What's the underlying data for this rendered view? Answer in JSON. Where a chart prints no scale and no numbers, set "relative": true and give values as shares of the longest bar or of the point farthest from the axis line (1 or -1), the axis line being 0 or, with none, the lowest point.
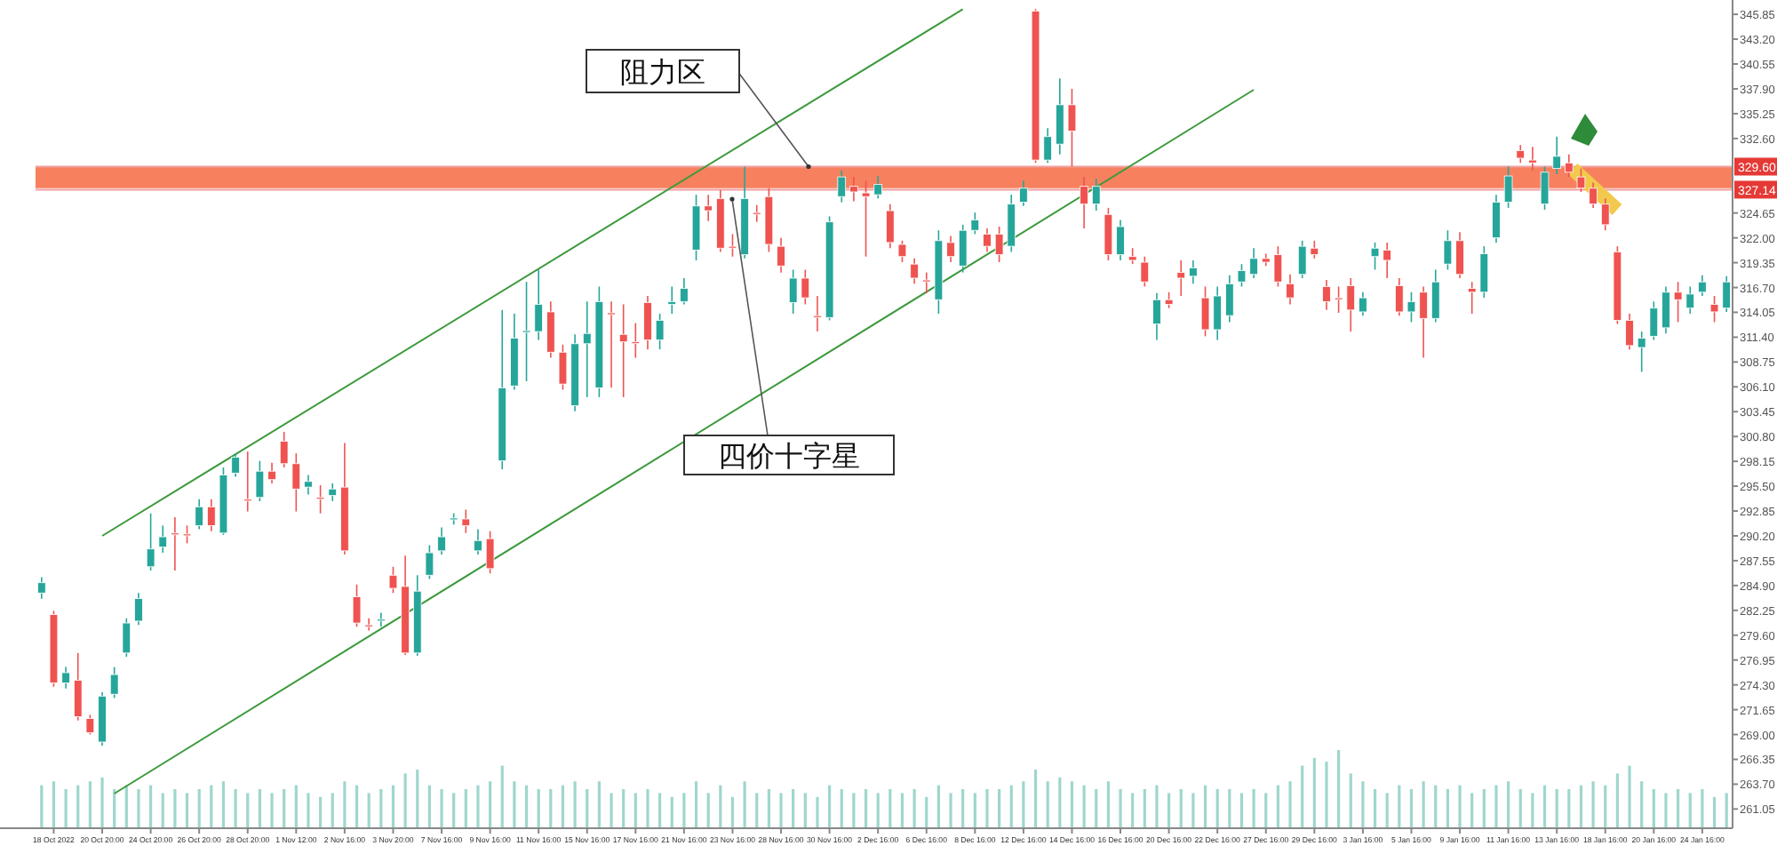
{
  "chart_data": [
    {
      "type": "candlestick",
      "categories": [
        null,
        "18 Oct 2022",
        null,
        null,
        null,
        "20 Oct 20:00",
        null,
        null,
        null,
        "24 Oct 20:00",
        null,
        null,
        null,
        "26 Oct 20:00",
        null,
        null,
        null,
        "28 Oct 20:00",
        null,
        null,
        null,
        "1 Nov 12:00",
        null,
        null,
        null,
        "2 Nov 16:00",
        null,
        null,
        null,
        "3 Nov 20:00",
        null,
        null,
        null,
        "7 Nov 16:00",
        null,
        null,
        null,
        "9 Nov 16:00",
        null,
        null,
        null,
        "11 Nov 16:00",
        null,
        null,
        null,
        "15 Nov 16:00",
        null,
        null,
        null,
        "17 Nov 16:00",
        null,
        null,
        null,
        "21 Nov 16:00",
        null,
        null,
        null,
        "23 Nov 16:00",
        null,
        null,
        null,
        "28 Nov 16:00",
        null,
        null,
        null,
        "30 Nov 16:00",
        null,
        null,
        null,
        "2 Dec 16:00",
        null,
        null,
        null,
        "6 Dec 16:00",
        null,
        null,
        null,
        "8 Dec 16:00",
        null,
        null,
        null,
        "12 Dec 16:00",
        null,
        null,
        null,
        "14 Dec 16:00",
        null,
        null,
        null,
        "16 Dec 16:00",
        null,
        null,
        null,
        "20 Dec 16:00",
        null,
        null,
        null,
        "22 Dec 16:00",
        null,
        null,
        null,
        "27 Dec 16:00",
        null,
        null,
        null,
        "29 Dec 16:00",
        null,
        null,
        null,
        "3 Jan 16:00",
        null,
        null,
        null,
        "5 Jan 16:00",
        null,
        null,
        null,
        "9 Jan 16:00",
        null,
        null,
        null,
        "11 Jan 16:00",
        null,
        null,
        null,
        "13 Jan 16:00",
        null,
        null,
        null,
        "18 Jan 16:00",
        null,
        null,
        null,
        "20 Jan 16:00",
        null,
        null,
        null,
        "24 Jan 16:00",
        null,
        null
      ],
      "ohlc": [
        [
          284.1,
          285.8,
          283.5,
          285.2
        ],
        [
          281.8,
          282.2,
          274.1,
          274.5
        ],
        [
          274.5,
          276.2,
          273.9,
          275.6
        ],
        [
          274.8,
          277.7,
          270.5,
          270.9
        ],
        [
          270.7,
          271.1,
          269.0,
          269.2
        ],
        [
          268.2,
          273.5,
          267.8,
          273.1
        ],
        [
          273.3,
          276.2,
          272.9,
          275.4
        ],
        [
          277.7,
          281.4,
          277.3,
          280.9
        ],
        [
          281.1,
          284.1,
          280.7,
          283.5
        ],
        [
          286.9,
          292.6,
          286.5,
          288.8
        ],
        [
          289.0,
          291.3,
          288.4,
          290.1
        ],
        [
          290.5,
          292.2,
          286.5,
          290.4
        ],
        [
          290.4,
          291.3,
          289.4,
          290.3
        ],
        [
          291.3,
          294.1,
          290.9,
          293.3
        ],
        [
          293.3,
          294.1,
          290.7,
          291.3
        ],
        [
          290.5,
          297.5,
          290.3,
          296.7
        ],
        [
          296.9,
          299.0,
          296.5,
          298.6
        ],
        [
          294.1,
          299.2,
          292.8,
          294.0
        ],
        [
          294.3,
          298.2,
          293.9,
          297.1
        ],
        [
          297.1,
          298.0,
          295.8,
          296.2
        ],
        [
          300.3,
          301.3,
          297.5,
          297.9
        ],
        [
          297.9,
          299.0,
          292.8,
          295.2
        ],
        [
          295.4,
          296.7,
          294.6,
          296.0
        ],
        [
          294.3,
          295.6,
          292.6,
          294.2
        ],
        [
          294.5,
          295.8,
          293.9,
          295.2
        ],
        [
          295.4,
          300.1,
          288.2,
          288.6
        ],
        [
          283.7,
          285.0,
          280.5,
          280.9
        ],
        [
          280.7,
          281.4,
          280.1,
          280.6
        ],
        [
          281.2,
          282.0,
          280.5,
          281.3
        ],
        [
          286.0,
          286.9,
          284.1,
          284.6
        ],
        [
          284.8,
          288.1,
          277.5,
          277.7
        ],
        [
          277.7,
          286.0,
          277.4,
          284.3
        ],
        [
          286.0,
          289.2,
          285.6,
          288.4
        ],
        [
          288.6,
          291.1,
          288.2,
          290.1
        ],
        [
          292.0,
          292.6,
          291.4,
          292.1
        ],
        [
          292.0,
          293.0,
          290.5,
          291.3
        ],
        [
          288.6,
          290.9,
          288.2,
          289.7
        ],
        [
          289.9,
          290.7,
          286.2,
          286.7
        ],
        [
          298.2,
          314.3,
          297.3,
          306.0
        ],
        [
          306.2,
          313.9,
          305.8,
          311.3
        ],
        [
          312.0,
          317.3,
          306.7,
          312.1
        ],
        [
          312.0,
          318.6,
          311.1,
          314.9
        ],
        [
          314.1,
          315.2,
          309.2,
          309.8
        ],
        [
          309.8,
          310.6,
          305.8,
          306.4
        ],
        [
          304.1,
          311.7,
          303.5,
          310.7
        ],
        [
          310.7,
          315.2,
          305.0,
          311.8
        ],
        [
          306.0,
          316.8,
          305.0,
          315.2
        ],
        [
          314.0,
          315.2,
          306.0,
          313.9
        ],
        [
          311.7,
          314.9,
          305.0,
          310.9
        ],
        [
          310.9,
          312.9,
          309.2,
          310.8
        ],
        [
          315.1,
          315.8,
          310.1,
          311.1
        ],
        [
          311.1,
          313.9,
          310.1,
          313.2
        ],
        [
          314.9,
          316.8,
          313.9,
          315.2
        ],
        [
          315.2,
          317.7,
          314.9,
          316.6
        ],
        [
          320.7,
          326.6,
          319.6,
          325.4
        ],
        [
          325.4,
          326.6,
          323.8,
          324.9
        ],
        [
          326.2,
          327.1,
          320.5,
          320.9
        ],
        [
          321.1,
          322.4,
          320.0,
          321.0
        ],
        [
          320.2,
          329.6,
          319.8,
          326.2
        ],
        [
          324.7,
          325.5,
          323.7,
          324.6
        ],
        [
          326.4,
          327.3,
          320.5,
          321.3
        ],
        [
          321.1,
          322.0,
          318.3,
          319.0
        ],
        [
          315.1,
          318.6,
          313.9,
          317.7
        ],
        [
          317.7,
          318.6,
          314.9,
          315.6
        ],
        [
          313.7,
          315.8,
          312.0,
          313.6
        ],
        [
          313.5,
          324.3,
          313.2,
          323.7
        ],
        [
          326.4,
          329.2,
          325.8,
          328.5
        ],
        [
          327.5,
          328.5,
          325.9,
          326.9
        ],
        [
          326.8,
          328.1,
          320.0,
          326.4
        ],
        [
          326.6,
          328.6,
          326.2,
          327.7
        ],
        [
          324.9,
          325.6,
          320.9,
          321.5
        ],
        [
          321.3,
          321.7,
          319.4,
          320.0
        ],
        [
          319.2,
          319.8,
          317.1,
          317.7
        ],
        [
          317.5,
          318.3,
          316.1,
          317.4
        ],
        [
          315.4,
          322.8,
          313.9,
          321.7
        ],
        [
          321.5,
          322.2,
          319.4,
          320.0
        ],
        [
          319.0,
          323.4,
          318.3,
          322.8
        ],
        [
          322.8,
          324.7,
          322.4,
          323.9
        ],
        [
          322.4,
          323.0,
          320.5,
          321.1
        ],
        [
          322.4,
          323.2,
          319.4,
          320.2
        ],
        [
          321.1,
          326.6,
          320.5,
          325.6
        ],
        [
          325.8,
          328.1,
          325.4,
          327.3
        ],
        [
          346.2,
          346.4,
          330.0,
          330.3
        ],
        [
          330.3,
          333.7,
          330.0,
          332.8
        ],
        [
          332.0,
          339.0,
          330.9,
          336.2
        ],
        [
          336.2,
          337.9,
          329.6,
          333.4
        ],
        [
          327.5,
          328.5,
          323.0,
          325.6
        ],
        [
          325.6,
          328.3,
          324.9,
          327.5
        ],
        [
          324.5,
          325.2,
          319.6,
          320.2
        ],
        [
          320.2,
          323.9,
          319.6,
          323.2
        ],
        [
          320.0,
          320.9,
          319.2,
          319.6
        ],
        [
          319.4,
          320.0,
          316.8,
          317.3
        ],
        [
          312.8,
          316.1,
          311.1,
          315.4
        ],
        [
          315.4,
          316.2,
          314.5,
          314.9
        ],
        [
          318.3,
          319.6,
          315.8,
          317.7
        ],
        [
          317.9,
          319.6,
          317.1,
          318.8
        ],
        [
          315.6,
          316.8,
          311.5,
          312.2
        ],
        [
          312.2,
          316.8,
          311.1,
          315.8
        ],
        [
          313.7,
          318.0,
          313.0,
          317.1
        ],
        [
          317.3,
          319.2,
          316.8,
          318.5
        ],
        [
          318.1,
          320.9,
          317.7,
          319.8
        ],
        [
          319.8,
          320.3,
          319.0,
          319.4
        ],
        [
          320.2,
          321.1,
          316.8,
          317.3
        ],
        [
          317.1,
          318.1,
          314.9,
          315.6
        ],
        [
          318.1,
          321.7,
          317.7,
          321.1
        ],
        [
          320.9,
          321.7,
          319.8,
          320.2
        ],
        [
          316.8,
          317.5,
          314.3,
          315.2
        ],
        [
          315.6,
          316.8,
          314.0,
          315.5
        ],
        [
          316.9,
          317.7,
          312.0,
          314.3
        ],
        [
          314.1,
          316.2,
          313.7,
          315.6
        ],
        [
          320.0,
          321.5,
          318.6,
          320.9
        ],
        [
          320.7,
          321.5,
          317.7,
          319.6
        ],
        [
          316.9,
          317.7,
          313.7,
          314.1
        ],
        [
          314.1,
          316.2,
          313.0,
          315.2
        ],
        [
          316.2,
          316.8,
          309.2,
          313.4
        ],
        [
          313.4,
          318.6,
          313.0,
          317.3
        ],
        [
          319.2,
          322.8,
          318.6,
          321.7
        ],
        [
          321.7,
          322.6,
          317.7,
          318.1
        ],
        [
          316.6,
          317.3,
          313.9,
          316.2
        ],
        [
          316.2,
          321.1,
          315.6,
          320.3
        ],
        [
          322.0,
          326.6,
          321.5,
          325.8
        ],
        [
          325.8,
          329.6,
          325.2,
          328.6
        ],
        [
          331.3,
          331.9,
          330.0,
          330.5
        ],
        [
          330.3,
          331.7,
          329.2,
          330.0
        ],
        [
          325.6,
          329.6,
          325.0,
          329.0
        ],
        [
          329.4,
          332.8,
          328.8,
          330.7
        ],
        [
          330.0,
          330.9,
          328.5,
          329.0
        ],
        [
          328.5,
          329.4,
          326.9,
          327.3
        ],
        [
          327.3,
          327.9,
          325.2,
          325.6
        ],
        [
          325.6,
          326.2,
          322.8,
          323.4
        ],
        [
          320.5,
          321.1,
          312.8,
          313.2
        ],
        [
          313.2,
          313.9,
          310.1,
          310.5
        ],
        [
          310.3,
          312.0,
          307.7,
          311.3
        ],
        [
          311.5,
          315.2,
          311.1,
          314.5
        ],
        [
          312.4,
          316.8,
          311.8,
          316.2
        ],
        [
          316.2,
          317.3,
          313.0,
          315.4
        ],
        [
          314.5,
          316.8,
          313.9,
          316.0
        ],
        [
          316.2,
          318.0,
          315.8,
          317.3
        ],
        [
          314.9,
          315.8,
          313.0,
          314.1
        ],
        [
          314.5,
          317.9,
          314.1,
          317.3
        ]
      ],
      "colors": [
        "#26a69a",
        "#ef5350",
        "#26a69a",
        "#ef5350",
        "#ef5350",
        "#26a69a",
        "#26a69a",
        "#26a69a",
        "#26a69a",
        "#26a69a",
        "#26a69a",
        "#ef5350",
        "#ef5350",
        "#26a69a",
        "#ef5350",
        "#26a69a",
        "#26a69a",
        "#ef5350",
        "#26a69a",
        "#ef5350",
        "#ef5350",
        "#ef5350",
        "#26a69a",
        "#ef5350",
        "#26a69a",
        "#ef5350",
        "#ef5350",
        "#ef5350",
        "#26a69a",
        "#ef5350",
        "#ef5350",
        "#26a69a",
        "#26a69a",
        "#26a69a",
        "#26a69a",
        "#ef5350",
        "#26a69a",
        "#ef5350",
        "#26a69a",
        "#26a69a",
        "#26a69a",
        "#26a69a",
        "#ef5350",
        "#ef5350",
        "#26a69a",
        "#26a69a",
        "#26a69a",
        "#ef5350",
        "#ef5350",
        "#ef5350",
        "#ef5350",
        "#26a69a",
        "#26a69a",
        "#26a69a",
        "#26a69a",
        "#ef5350",
        "#ef5350",
        "#ef5350",
        "#26a69a",
        "#ef5350",
        "#ef5350",
        "#ef5350",
        "#26a69a",
        "#ef5350",
        "#ef5350",
        "#26a69a",
        "#26a69a",
        "#ef5350",
        "#ef5350",
        "#26a69a",
        "#ef5350",
        "#ef5350",
        "#ef5350",
        "#ef5350",
        "#26a69a",
        "#ef5350",
        "#26a69a",
        "#26a69a",
        "#ef5350",
        "#ef5350",
        "#26a69a",
        "#26a69a",
        "#ef5350",
        "#26a69a",
        "#26a69a",
        "#ef5350",
        "#ef5350",
        "#26a69a",
        "#ef5350",
        "#26a69a",
        "#ef5350",
        "#ef5350",
        "#26a69a",
        "#ef5350",
        "#ef5350",
        "#26a69a",
        "#ef5350",
        "#26a69a",
        "#26a69a",
        "#26a69a",
        "#26a69a",
        "#ef5350",
        "#ef5350",
        "#ef5350",
        "#26a69a",
        "#ef5350",
        "#ef5350",
        "#ef5350",
        "#ef5350",
        "#26a69a",
        "#26a69a",
        "#ef5350",
        "#ef5350",
        "#26a69a",
        "#ef5350",
        "#26a69a",
        "#26a69a",
        "#ef5350",
        "#ef5350",
        "#26a69a",
        "#26a69a",
        "#26a69a",
        "#ef5350",
        "#ef5350",
        "#26a69a",
        "#26a69a",
        "#ef5350",
        "#ef5350",
        "#ef5350",
        "#ef5350",
        "#ef5350",
        "#ef5350",
        "#26a69a",
        "#26a69a",
        "#26a69a",
        "#ef5350",
        "#26a69a",
        "#26a69a",
        "#ef5350",
        "#26a69a"
      ],
      "series": [
        {
          "type": "line",
          "color": "#3c9a3c",
          "values": [
            null,
            null,
            null,
            null,
            null,
            290.2,
            null,
            null,
            null,
            null,
            null,
            null,
            null,
            null,
            null,
            null,
            null,
            null,
            null,
            null,
            null,
            null,
            null,
            null,
            null,
            null,
            null,
            null,
            null,
            null,
            null,
            null,
            null,
            null,
            null,
            null,
            null,
            null,
            null,
            null,
            null,
            null,
            null,
            null,
            null,
            null,
            null,
            null,
            null,
            null,
            null,
            null,
            null,
            null,
            null,
            null,
            null,
            null,
            null,
            null,
            null,
            null,
            null,
            null,
            null,
            null,
            null,
            null,
            null,
            null,
            null,
            null,
            null,
            null,
            null,
            null,
            346.4,
            null,
            null,
            null,
            null,
            null,
            null,
            null,
            null,
            null,
            null,
            null,
            null,
            null,
            null,
            null,
            null,
            null,
            null,
            null,
            null,
            null,
            null,
            null,
            null,
            null,
            null,
            null,
            null,
            null,
            null,
            null,
            null,
            null,
            null,
            null,
            null,
            null,
            null,
            null,
            null,
            null,
            null,
            null,
            null,
            null,
            null,
            null,
            null,
            null,
            null,
            null,
            null,
            null,
            null,
            null,
            null,
            null,
            null,
            null,
            null,
            null,
            null,
            null
          ]
        },
        {
          "type": "line",
          "color": "#3c9a3c",
          "values": [
            null,
            null,
            null,
            null,
            null,
            null,
            262.7,
            null,
            null,
            null,
            null,
            null,
            null,
            null,
            null,
            null,
            null,
            null,
            null,
            null,
            null,
            null,
            null,
            null,
            null,
            null,
            null,
            null,
            null,
            null,
            null,
            null,
            null,
            null,
            null,
            null,
            null,
            null,
            null,
            null,
            null,
            null,
            null,
            null,
            null,
            null,
            null,
            null,
            null,
            null,
            null,
            null,
            null,
            null,
            null,
            null,
            null,
            null,
            null,
            null,
            null,
            null,
            null,
            null,
            null,
            null,
            null,
            null,
            null,
            null,
            null,
            null,
            null,
            null,
            null,
            null,
            null,
            null,
            null,
            null,
            null,
            null,
            null,
            null,
            null,
            null,
            null,
            null,
            null,
            null,
            null,
            null,
            null,
            null,
            null,
            null,
            null,
            null,
            null,
            null,
            337.8,
            null,
            null,
            null,
            null,
            null,
            null,
            null,
            null,
            null,
            null,
            null,
            null,
            null,
            null,
            null,
            null,
            null,
            null,
            null,
            null,
            null,
            null,
            null,
            null,
            null,
            null,
            null,
            null,
            null,
            null,
            null,
            null,
            null,
            null,
            null,
            null,
            null,
            null,
            null
          ]
        }
      ],
      "ylim": [
        259.0,
        347.0
      ],
      "yticks": [
        {
          "value": 261.05,
          "label": "261.05"
        },
        {
          "value": 263.7,
          "label": "263.70"
        },
        {
          "value": 266.35,
          "label": "266.35"
        },
        {
          "value": 269.0,
          "label": "269.00"
        },
        {
          "value": 271.65,
          "label": "271.65"
        },
        {
          "value": 274.3,
          "label": "274.30"
        },
        {
          "value": 276.95,
          "label": "276.95"
        },
        {
          "value": 279.6,
          "label": "279.60"
        },
        {
          "value": 282.25,
          "label": "282.25"
        },
        {
          "value": 284.9,
          "label": "284.90"
        },
        {
          "value": 287.55,
          "label": "287.55"
        },
        {
          "value": 290.2,
          "label": "290.20"
        },
        {
          "value": 292.85,
          "label": "292.85"
        },
        {
          "value": 295.5,
          "label": "295.50"
        },
        {
          "value": 298.15,
          "label": "298.15"
        },
        {
          "value": 300.8,
          "label": "300.80"
        },
        {
          "value": 303.45,
          "label": "303.45"
        },
        {
          "value": 306.1,
          "label": "306.10"
        },
        {
          "value": 308.75,
          "label": "308.75"
        },
        {
          "value": 311.4,
          "label": "311.40"
        },
        {
          "value": 314.05,
          "label": "314.05"
        },
        {
          "value": 316.7,
          "label": "316.70"
        },
        {
          "value": 319.35,
          "label": "319.35"
        },
        {
          "value": 322.0,
          "label": "322.00"
        },
        {
          "value": 324.65,
          "label": "324.65"
        },
        {
          "value": 332.6,
          "label": "332.60"
        },
        {
          "value": 335.25,
          "label": "335.25"
        },
        {
          "value": 337.9,
          "label": "337.90"
        },
        {
          "value": 340.55,
          "label": "340.55"
        },
        {
          "value": 343.2,
          "label": "343.20"
        },
        {
          "value": 345.85,
          "label": "345.85"
        }
      ],
      "ref_lines": [
        {
          "axis": "y",
          "value": 329.6,
          "label": "329.60",
          "color": "#f0a0a0"
        },
        {
          "axis": "y",
          "value": 327.14,
          "label": "327.14",
          "color": "#f0a0a0"
        }
      ],
      "bands": [
        {
          "axis": "y",
          "from": 327.3,
          "to": 329.6,
          "color": "#f7805e"
        }
      ],
      "annotations": [
        {
          "text": "阻力区",
          "y": 329.6
        },
        "四价十字星"
      ]
    },
    {
      "type": "bar",
      "relative": true,
      "color": "#9fd6cd",
      "categories": [
        null,
        null,
        null,
        null,
        null,
        null,
        null,
        null,
        null,
        null,
        null,
        null,
        null,
        null,
        null,
        null,
        null,
        null,
        null,
        null,
        null,
        null,
        null,
        null,
        null,
        null,
        null,
        null,
        null,
        null,
        null,
        null,
        null,
        null,
        null,
        null,
        null,
        null,
        null,
        null,
        null,
        null,
        null,
        null,
        null,
        null,
        null,
        null,
        null,
        null,
        null,
        null,
        null,
        null,
        null,
        null,
        null,
        null,
        null,
        null,
        null,
        null,
        null,
        null,
        null,
        null,
        null,
        null,
        null,
        null,
        null,
        null,
        null,
        null,
        null,
        null,
        null,
        null,
        null,
        null,
        null,
        null,
        null,
        null,
        null,
        null,
        null,
        null,
        null,
        null,
        null,
        null,
        null,
        null,
        null,
        null,
        null,
        null,
        null,
        null,
        null,
        null,
        null,
        null,
        null,
        null,
        null,
        null,
        null,
        null,
        null,
        null,
        null,
        null,
        null,
        null,
        null,
        null,
        null,
        null,
        null,
        null,
        null,
        null,
        null,
        null,
        null,
        null,
        null,
        null,
        null,
        null,
        null,
        null,
        null,
        null,
        null,
        null,
        null,
        null
      ],
      "values": [
        0.55,
        0.6,
        0.5,
        0.55,
        0.6,
        0.65,
        0.5,
        0.55,
        0.5,
        0.55,
        0.45,
        0.5,
        0.45,
        0.5,
        0.55,
        0.6,
        0.5,
        0.45,
        0.5,
        0.45,
        0.5,
        0.55,
        0.45,
        0.4,
        0.45,
        0.6,
        0.55,
        0.45,
        0.5,
        0.55,
        0.7,
        0.75,
        0.55,
        0.5,
        0.45,
        0.5,
        0.55,
        0.6,
        0.8,
        0.6,
        0.55,
        0.5,
        0.5,
        0.55,
        0.6,
        0.5,
        0.6,
        0.45,
        0.5,
        0.45,
        0.5,
        0.45,
        0.4,
        0.45,
        0.6,
        0.45,
        0.55,
        0.4,
        0.6,
        0.45,
        0.5,
        0.45,
        0.5,
        0.45,
        0.4,
        0.55,
        0.5,
        0.45,
        0.5,
        0.45,
        0.5,
        0.45,
        0.5,
        0.4,
        0.55,
        0.45,
        0.5,
        0.45,
        0.5,
        0.5,
        0.55,
        0.6,
        0.75,
        0.6,
        0.65,
        0.6,
        0.55,
        0.5,
        0.6,
        0.5,
        0.45,
        0.5,
        0.55,
        0.45,
        0.5,
        0.45,
        0.55,
        0.5,
        0.5,
        0.45,
        0.5,
        0.45,
        0.55,
        0.6,
        0.8,
        0.9,
        0.85,
        1.0,
        0.7,
        0.6,
        0.5,
        0.45,
        0.55,
        0.5,
        0.6,
        0.55,
        0.5,
        0.55,
        0.45,
        0.5,
        0.55,
        0.6,
        0.5,
        0.45,
        0.55,
        0.5,
        0.5,
        0.55,
        0.6,
        0.55,
        0.7,
        0.8,
        0.6,
        0.5,
        0.45,
        0.5,
        0.45,
        0.5,
        0.4,
        0.45
      ]
    }
  ]
}
